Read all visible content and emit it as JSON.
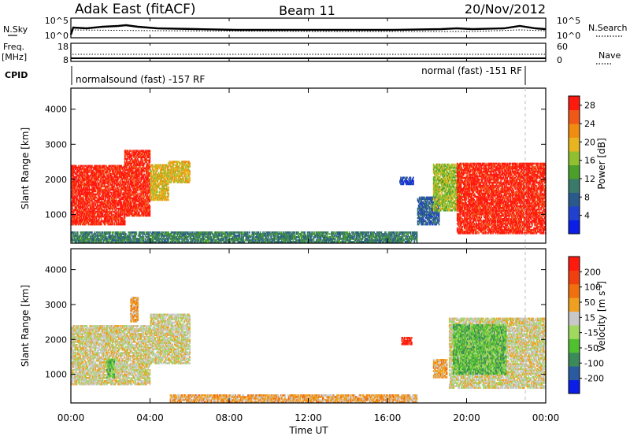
{
  "header": {
    "title_left": "Adak East (fitACF)",
    "title_center": "Beam 11",
    "title_right": "20/Nov/2012"
  },
  "strips": {
    "nsky_label": "N.Sky",
    "nsky_ticks": [
      "10^5",
      "10^0"
    ],
    "nsearch_label": "N.Search",
    "nsearch_ticks": [
      "10^5",
      "10^0"
    ],
    "freq_label_1": "Freq.",
    "freq_label_2": "[MHz]",
    "freq_ticks": [
      "18",
      "8"
    ],
    "nave_label": "Nave",
    "nave_ticks": [
      "60",
      "0"
    ],
    "cpid_label": "CPID",
    "cpid_mode_1": "normalsound (fast) -157 RF",
    "cpid_mode_2": "normal (fast) -151 RF"
  },
  "x_axis": {
    "label": "Time UT",
    "ticks": [
      "00:00",
      "04:00",
      "08:00",
      "12:00",
      "16:00",
      "20:00",
      "00:00"
    ]
  },
  "chart_data": [
    {
      "type": "heatmap",
      "panel": "power",
      "title": "",
      "xlabel": "Time UT",
      "ylabel": "Slant Range [km]",
      "x_range_hours": [
        0,
        24
      ],
      "ylim": [
        180,
        4600
      ],
      "y_ticks": [
        "1000",
        "2000",
        "3000",
        "4000"
      ],
      "y_tick_values": [
        1000,
        2000,
        3000,
        4000
      ],
      "colorbar": {
        "label": "Power [dB]",
        "ticks": [
          "4",
          "8",
          "12",
          "16",
          "20",
          "24",
          "28"
        ],
        "colors": [
          "#0a1ee8",
          "#2040d0",
          "#2a5a8c",
          "#3a7a6a",
          "#4aa02a",
          "#90c030",
          "#e8b420",
          "#f08c10",
          "#f05818",
          "#ff1a10"
        ]
      },
      "regions": [
        {
          "t0": 0.0,
          "t1": 2.7,
          "r0": 700,
          "r1": 2400,
          "level": 9
        },
        {
          "t0": 2.7,
          "t1": 4.0,
          "r0": 950,
          "r1": 2800,
          "level": 9
        },
        {
          "t0": 4.0,
          "t1": 4.9,
          "r0": 1400,
          "r1": 2400,
          "level": 6
        },
        {
          "t0": 4.9,
          "t1": 6.0,
          "r0": 1900,
          "r1": 2500,
          "level": 6
        },
        {
          "t0": 0.0,
          "t1": 17.5,
          "r0": 200,
          "r1": 500,
          "level": 3
        },
        {
          "t0": 16.6,
          "t1": 17.3,
          "r0": 1850,
          "r1": 2050,
          "level": 1
        },
        {
          "t0": 17.5,
          "t1": 18.6,
          "r0": 700,
          "r1": 1500,
          "level": 2
        },
        {
          "t0": 18.3,
          "t1": 19.7,
          "r0": 1100,
          "r1": 2450,
          "level": 5
        },
        {
          "t0": 19.5,
          "t1": 24.0,
          "r0": 450,
          "r1": 2450,
          "level": 9
        }
      ]
    },
    {
      "type": "heatmap",
      "panel": "velocity",
      "title": "",
      "xlabel": "Time UT",
      "ylabel": "Slant Range [km]",
      "x_range_hours": [
        0,
        24
      ],
      "ylim": [
        180,
        4600
      ],
      "y_ticks": [
        "1000",
        "2000",
        "3000",
        "4000"
      ],
      "y_tick_values": [
        1000,
        2000,
        3000,
        4000
      ],
      "colorbar": {
        "label": "Velocity [m s^-1]",
        "ticks": [
          "200",
          "100",
          "50",
          "15",
          "-15",
          "-50",
          "-100",
          "-200"
        ],
        "colors": [
          "#0a1ee8",
          "#2a5aa0",
          "#3a8a5a",
          "#50c030",
          "#a0d860",
          "#c8c8c8",
          "#f0a020",
          "#f07010",
          "#f04010",
          "#ff1a10"
        ]
      },
      "regions": [
        {
          "t0": 0.0,
          "t1": 4.0,
          "r0": 700,
          "r1": 2400,
          "level": 5
        },
        {
          "t0": 4.0,
          "t1": 6.0,
          "r0": 1300,
          "r1": 2700,
          "level": 5
        },
        {
          "t0": 1.8,
          "t1": 2.2,
          "r0": 900,
          "r1": 1400,
          "level": 3
        },
        {
          "t0": 3.0,
          "t1": 3.4,
          "r0": 2500,
          "r1": 3200,
          "level": 6
        },
        {
          "t0": 5.0,
          "t1": 17.5,
          "r0": 200,
          "r1": 400,
          "level": 6
        },
        {
          "t0": 16.7,
          "t1": 17.2,
          "r0": 1850,
          "r1": 2050,
          "level": 9
        },
        {
          "t0": 18.3,
          "t1": 19.0,
          "r0": 900,
          "r1": 1400,
          "level": 6
        },
        {
          "t0": 19.1,
          "t1": 24.0,
          "r0": 600,
          "r1": 2600,
          "level": 5
        },
        {
          "t0": 19.3,
          "t1": 22.0,
          "r0": 1000,
          "r1": 2400,
          "level": 3
        }
      ]
    }
  ]
}
